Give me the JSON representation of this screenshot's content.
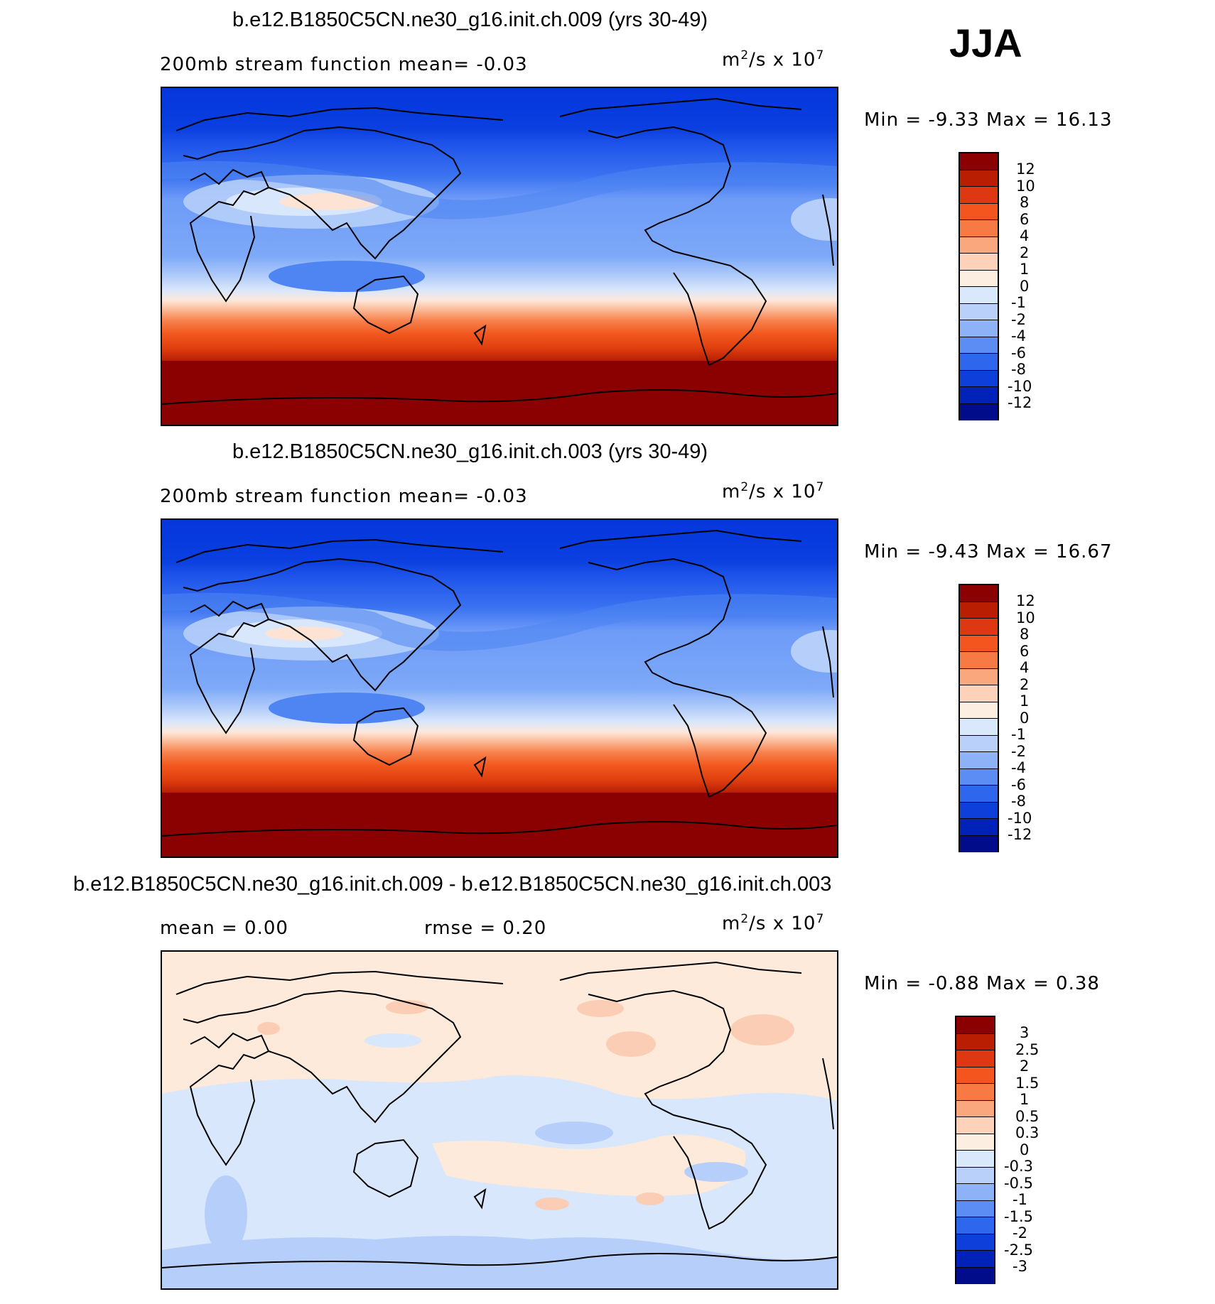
{
  "season": "JJA",
  "unit_text": "m",
  "unit_sup": "2",
  "unit_mid": "/s x 10",
  "unit_exp": "7",
  "panels": [
    {
      "title": "b.e12.B1850C5CN.ne30_g16.init.ch.009 (yrs 30-49)",
      "left_label": "200mb stream function   mean=   -0.03",
      "minmax": "Min =   -9.33 Max =   16.13",
      "bands_top_to_bottom": [
        "#0033dd",
        "#1548e8",
        "#2e6af0",
        "#5a8ef5",
        "#82acf8",
        "#c0d6fb",
        "#fbe0cf",
        "#d6e6fb",
        "#b4cdfa",
        "#8fb3f7",
        "#fdd0b5",
        "#fb9f70",
        "#f56a36",
        "#e8431c",
        "#c32a0c",
        "#a81a05",
        "#8b0000"
      ],
      "colorbar_labels": [
        "12",
        "10",
        "8",
        "6",
        "4",
        "2",
        "1",
        "0",
        "-1",
        "-2",
        "-4",
        "-6",
        "-8",
        "-10",
        "-12"
      ]
    },
    {
      "title": "b.e12.B1850C5CN.ne30_g16.init.ch.003 (yrs 30-49)",
      "left_label": "200mb stream function   mean=   -0.03",
      "minmax": "Min =   -9.43 Max =   16.67",
      "colorbar_labels": [
        "12",
        "10",
        "8",
        "6",
        "4",
        "2",
        "1",
        "0",
        "-1",
        "-2",
        "-4",
        "-6",
        "-8",
        "-10",
        "-12"
      ]
    },
    {
      "title": "b.e12.B1850C5CN.ne30_g16.init.ch.009 - b.e12.B1850C5CN.ne30_g16.init.ch.003",
      "left_label": "mean =    0.00",
      "mid_label": "rmse =    0.20",
      "minmax": "Min =   -0.88 Max =    0.38",
      "colorbar_labels": [
        "3",
        "2.5",
        "2",
        "1.5",
        "1",
        "0.5",
        "0.3",
        "0",
        "-0.3",
        "-0.5",
        "-1",
        "-1.5",
        "-2",
        "-2.5",
        "-3"
      ]
    }
  ],
  "colorbar_colors": [
    "#8b0000",
    "#b91e03",
    "#dd3812",
    "#f4551f",
    "#f77a45",
    "#faa77e",
    "#fdd2b8",
    "#fdeee2",
    "#d9e8fb",
    "#b8d0fa",
    "#8db2f7",
    "#5b8df4",
    "#2e66ee",
    "#0e3fdb",
    "#0022b8",
    "#000c8a"
  ]
}
